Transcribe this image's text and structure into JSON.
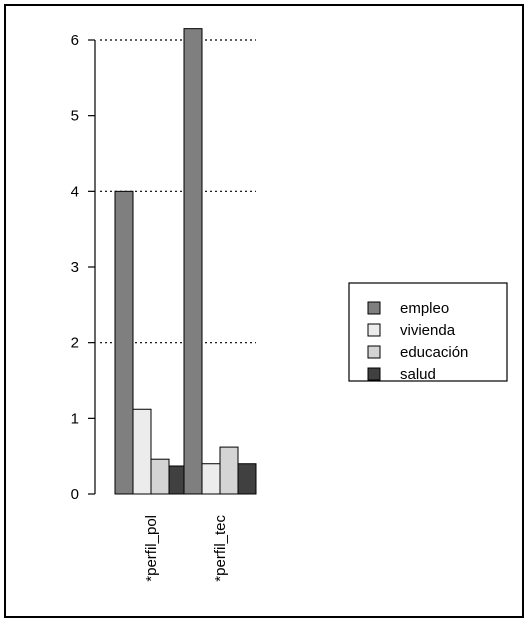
{
  "chart_data": {
    "type": "bar",
    "categories": [
      "*perfil_pol",
      "*perfil_tec"
    ],
    "series": [
      {
        "name": "empleo",
        "color": "#7f7f7f",
        "values": [
          4.0,
          6.15
        ]
      },
      {
        "name": "vivienda",
        "color": "#ececec",
        "values": [
          1.12,
          0.4
        ]
      },
      {
        "name": "educación",
        "color": "#d4d4d4",
        "values": [
          0.46,
          0.62
        ]
      },
      {
        "name": "salud",
        "color": "#404040",
        "values": [
          0.37,
          0.4
        ]
      }
    ],
    "yticks": [
      0,
      1,
      2,
      3,
      4,
      5,
      6
    ],
    "ylim": [
      0,
      6.4
    ],
    "gridlines": [
      2,
      4,
      6
    ],
    "grid": "horizontal dotted at 2, 4, 6",
    "legend_position": "right",
    "title": "",
    "xlabel": "",
    "ylabel": ""
  }
}
